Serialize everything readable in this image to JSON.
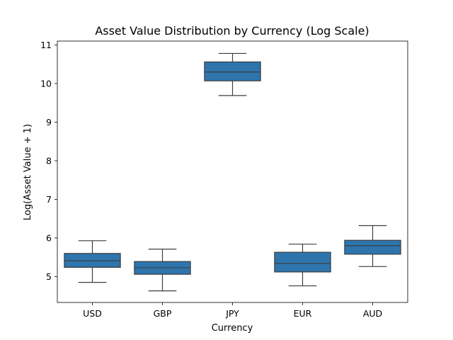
{
  "chart_data": {
    "type": "box",
    "title": "Asset Value Distribution by Currency (Log Scale)",
    "xlabel": "Currency",
    "ylabel": "Log(Asset Value + 1)",
    "ylim": [
      4.33,
      11.1
    ],
    "yticks": [
      5,
      6,
      7,
      8,
      9,
      10,
      11
    ],
    "categories": [
      "USD",
      "GBP",
      "JPY",
      "EUR",
      "AUD"
    ],
    "boxes": [
      {
        "category": "USD",
        "whisker_low": 4.85,
        "q1": 5.24,
        "median": 5.41,
        "q3": 5.6,
        "whisker_high": 5.93
      },
      {
        "category": "GBP",
        "whisker_low": 4.63,
        "q1": 5.06,
        "median": 5.23,
        "q3": 5.39,
        "whisker_high": 5.71
      },
      {
        "category": "JPY",
        "whisker_low": 9.69,
        "q1": 10.07,
        "median": 10.3,
        "q3": 10.56,
        "whisker_high": 10.78
      },
      {
        "category": "EUR",
        "whisker_low": 4.76,
        "q1": 5.12,
        "median": 5.34,
        "q3": 5.63,
        "whisker_high": 5.84
      },
      {
        "category": "AUD",
        "whisker_low": 5.26,
        "q1": 5.58,
        "median": 5.8,
        "q3": 5.94,
        "whisker_high": 6.32
      }
    ],
    "box_color": "#2e75ae",
    "line_color": "#3d3d3d",
    "grid": false,
    "legend": "none"
  }
}
